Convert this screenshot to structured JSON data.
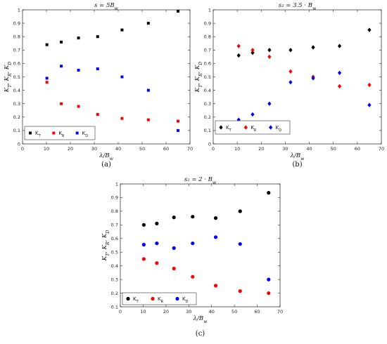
{
  "chart_data": [
    {
      "type": "scatter",
      "panel_caption": "(a)",
      "title": "s = 5B_w",
      "xlabel": "λ/B_w",
      "ylabel": "K_T, K_R, K_D",
      "xlim": [
        0,
        70
      ],
      "ylim": [
        0,
        1
      ],
      "xticks": [
        "0",
        "10",
        "20",
        "30",
        "40",
        "50",
        "60",
        "70"
      ],
      "yticks": [
        "0",
        "0.1",
        "0.2",
        "0.3",
        "0.4",
        "0.5",
        "0.6",
        "0.7",
        "0.8",
        "0.9",
        "1"
      ],
      "marker": "square",
      "legend_position": "bottom-left",
      "series": [
        {
          "name": "K_T",
          "label": "K",
          "sub": "T",
          "color": "#000000",
          "x": [
            10.2,
            16.2,
            23.4,
            31.4,
            41.6,
            52.6,
            65.0
          ],
          "y": [
            0.74,
            0.76,
            0.79,
            0.8,
            0.85,
            0.9,
            0.99
          ]
        },
        {
          "name": "K_R",
          "label": "K",
          "sub": "R",
          "color": "#ff0000",
          "x": [
            10.2,
            16.2,
            23.4,
            31.4,
            41.6,
            52.6,
            65.0
          ],
          "y": [
            0.46,
            0.3,
            0.28,
            0.22,
            0.19,
            0.18,
            0.17
          ]
        },
        {
          "name": "K_D",
          "label": "K",
          "sub": "D",
          "color": "#0000ff",
          "x": [
            10.2,
            16.2,
            23.4,
            31.4,
            41.6,
            52.6,
            65.0
          ],
          "y": [
            0.49,
            0.58,
            0.55,
            0.56,
            0.5,
            0.4,
            0.1
          ]
        }
      ]
    },
    {
      "type": "scatter",
      "panel_caption": "(b)",
      "title": "s₂ = 3.5 · B_w",
      "xlabel": "λ/B_w",
      "ylabel": "K_T, K_R, K_D",
      "xlim": [
        0,
        70
      ],
      "ylim": [
        0,
        1
      ],
      "xticks": [
        "0",
        "10",
        "20",
        "30",
        "40",
        "50",
        "60",
        "70"
      ],
      "yticks": [
        "0",
        "0.1",
        "0.2",
        "0.3",
        "0.4",
        "0.5",
        "0.6",
        "0.7",
        "0.8",
        "0.9",
        "1"
      ],
      "marker": "diamond",
      "legend_position": "bottom-left",
      "series": [
        {
          "name": "K_T",
          "label": "K",
          "sub": "T",
          "color": "#000000",
          "x": [
            10.6,
            16.4,
            23.4,
            32.2,
            41.6,
            52.6,
            65.0
          ],
          "y": [
            0.66,
            0.68,
            0.7,
            0.7,
            0.72,
            0.73,
            0.85
          ]
        },
        {
          "name": "K_R",
          "label": "K",
          "sub": "R",
          "color": "#ff0000",
          "x": [
            10.6,
            16.4,
            23.4,
            32.2,
            41.6,
            52.6,
            65.0
          ],
          "y": [
            0.73,
            0.7,
            0.65,
            0.54,
            0.5,
            0.43,
            0.44
          ]
        },
        {
          "name": "K_D",
          "label": "K",
          "sub": "D",
          "color": "#0000ff",
          "x": [
            10.6,
            16.4,
            23.4,
            32.2,
            41.6,
            52.6,
            65.0
          ],
          "y": [
            0.18,
            0.22,
            0.3,
            0.46,
            0.49,
            0.53,
            0.29
          ]
        }
      ]
    },
    {
      "type": "scatter",
      "panel_caption": "(c)",
      "title": "s₂ = 2 · B_w",
      "xlabel": "λ/B_w",
      "ylabel": "K_T, K_R, K_D",
      "xlim": [
        0,
        70
      ],
      "ylim": [
        0.1,
        1
      ],
      "xticks": [
        "0",
        "10",
        "20",
        "30",
        "40",
        "50",
        "60",
        "70"
      ],
      "yticks": [
        "0.1",
        "0.2",
        "0.3",
        "0.4",
        "0.5",
        "0.6",
        "0.7",
        "0.8",
        "0.9",
        "1"
      ],
      "marker": "circle",
      "legend_position": "bottom-left",
      "series": [
        {
          "name": "K_T",
          "label": "K",
          "sub": "T",
          "color": "#000000",
          "x": [
            10.3,
            16.0,
            23.5,
            31.7,
            41.8,
            52.5,
            65.0
          ],
          "y": [
            0.7,
            0.71,
            0.755,
            0.76,
            0.75,
            0.8,
            0.935
          ]
        },
        {
          "name": "K_R",
          "label": "K",
          "sub": "R",
          "color": "#ff0000",
          "x": [
            10.3,
            16.0,
            23.5,
            31.7,
            41.8,
            52.5,
            65.0
          ],
          "y": [
            0.45,
            0.42,
            0.38,
            0.32,
            0.255,
            0.215,
            0.2
          ]
        },
        {
          "name": "K_D",
          "label": "K",
          "sub": "D",
          "color": "#0000ff",
          "x": [
            10.3,
            16.0,
            23.5,
            31.7,
            41.8,
            52.5,
            65.0
          ],
          "y": [
            0.555,
            0.565,
            0.53,
            0.565,
            0.61,
            0.56,
            0.3
          ]
        }
      ]
    }
  ]
}
